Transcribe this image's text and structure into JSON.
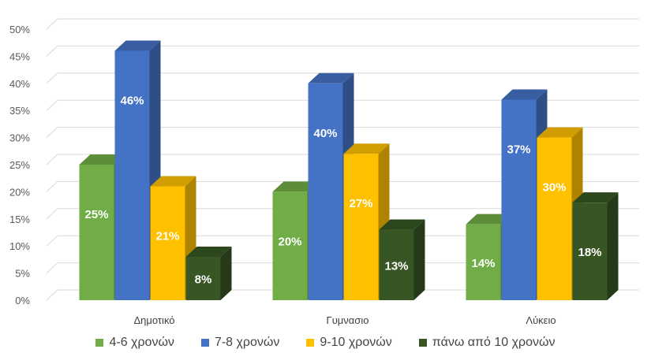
{
  "chart_data": {
    "type": "bar",
    "categories": [
      "Δημοτικό",
      "Γυμνασιο",
      "Λύκειο"
    ],
    "series": [
      {
        "name": "4-6 χρονών",
        "color": "#70ad47",
        "values": [
          25,
          20,
          14
        ]
      },
      {
        "name": "7-8 χρονών",
        "color": "#4472c4",
        "values": [
          46,
          40,
          37
        ]
      },
      {
        "name": "9-10 χρονών",
        "color": "#ffc000",
        "values": [
          21,
          27,
          30
        ]
      },
      {
        "name": "πάνω από 10 χρονών",
        "color": "#375623",
        "values": [
          8,
          13,
          18
        ]
      }
    ],
    "data_labels": [
      [
        "25%",
        "20%",
        "14%"
      ],
      [
        "46%",
        "40%",
        "37%"
      ],
      [
        "21%",
        "27%",
        "30%"
      ],
      [
        "8%",
        "13%",
        "18%"
      ]
    ],
    "yticks": [
      "0%",
      "5%",
      "10%",
      "15%",
      "20%",
      "25%",
      "30%",
      "35%",
      "40%",
      "45%",
      "50%"
    ],
    "ylim": [
      0,
      50
    ],
    "style": "3d-clustered-column",
    "grid": true,
    "legend_position": "bottom"
  }
}
